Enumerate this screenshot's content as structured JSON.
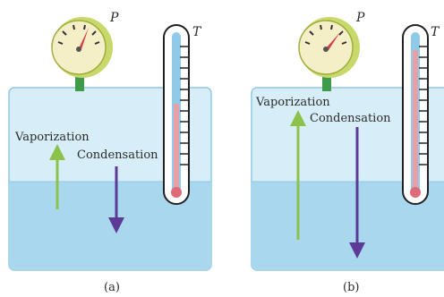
{
  "panels": [
    {
      "caption": "(a)",
      "pressure_label": "P",
      "temperature_label": "T",
      "vaporization_label": "Vaporization",
      "condensation_label": "Condensation"
    },
    {
      "caption": "(b)",
      "pressure_label": "P",
      "temperature_label": "T",
      "vaporization_label": "Vaporization",
      "condensation_label": "Condensation"
    }
  ],
  "colors": {
    "container_fill": "#d7eef8",
    "container_stroke": "#8ec9e6",
    "water_fill": "#a9d8ee",
    "gauge_rim": "#c8d86a",
    "gauge_face": "#f5efc8",
    "gauge_needle": "#d6404a",
    "gauge_stem": "#3f9b4a",
    "thermo_tube": "#8fcbe8",
    "thermo_liquid": "#e8a0a6",
    "thermo_bulb": "#e06a78",
    "vaporization_arrow": "#8cc14a",
    "condensation_arrow": "#5c3a96"
  }
}
